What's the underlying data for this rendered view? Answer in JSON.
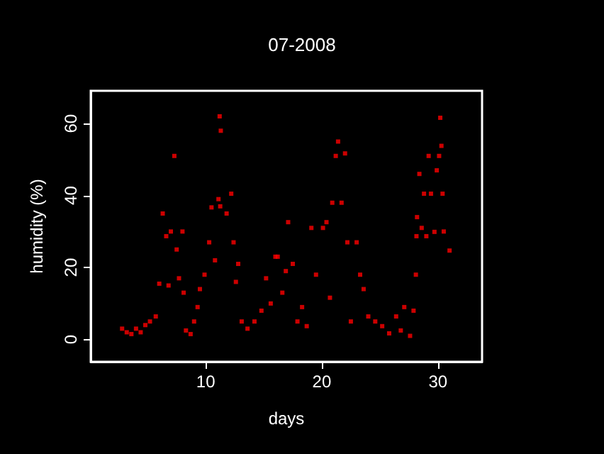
{
  "chart_data": {
    "type": "scatter",
    "title": "07-2008",
    "xlabel": "days",
    "ylabel": "humidity (%)",
    "marker": "square",
    "grid": false,
    "xlim": [
      0.1,
      33.8
    ],
    "xticks": [
      10,
      20,
      30
    ],
    "ylim": [
      -6.2,
      69.1
    ],
    "yticks": [
      0,
      20,
      40,
      60
    ],
    "series": [
      {
        "color": "#ff0000",
        "x": [
          2.8,
          3.2,
          3.6,
          4.0,
          4.4,
          4.8,
          5.2,
          5.7,
          6.0,
          6.3,
          6.6,
          6.8,
          7.0,
          7.3,
          7.5,
          7.7,
          8.0,
          8.1,
          8.3,
          8.7,
          9.0,
          9.3,
          9.5,
          9.9,
          10.3,
          10.5,
          10.8,
          11.1,
          11.2,
          11.3,
          11.25,
          11.8,
          12.2,
          12.4,
          12.6,
          12.8,
          13.1,
          13.6,
          14.2,
          14.8,
          15.2,
          15.6,
          16.0,
          16.2,
          16.6,
          16.9,
          17.1,
          17.5,
          17.9,
          18.3,
          18.7,
          19.1,
          19.5,
          20.1,
          20.4,
          20.7,
          20.9,
          21.2,
          21.4,
          21.7,
          22.0,
          22.2,
          22.5,
          23.0,
          23.3,
          23.6,
          24.0,
          24.6,
          25.2,
          25.8,
          26.4,
          26.8,
          27.1,
          27.6,
          27.9,
          28.1,
          28.15,
          28.2,
          28.4,
          28.6,
          28.8,
          29.0,
          29.2,
          29.4,
          29.7,
          29.9,
          30.1,
          30.2,
          30.3,
          30.4,
          30.5,
          31.0
        ],
        "values": [
          3,
          2,
          1.5,
          3,
          2,
          4,
          5,
          6.4,
          15.5,
          35,
          28.7,
          15,
          30,
          51,
          25,
          17,
          30,
          13,
          2.5,
          1.5,
          5,
          9,
          14,
          18,
          27,
          36.7,
          22,
          39,
          62,
          58,
          37,
          35,
          40.5,
          27,
          16,
          21,
          5,
          3,
          5,
          8,
          17,
          10,
          23,
          23,
          13,
          19,
          32.6,
          21,
          5,
          9,
          3.7,
          31,
          18,
          31,
          32.6,
          11.6,
          38,
          51,
          55,
          38,
          51.7,
          27,
          5,
          27,
          18,
          14,
          6.4,
          5,
          3.7,
          1.7,
          6.4,
          2.5,
          9,
          1,
          8,
          18,
          28.7,
          34,
          46,
          31,
          40.5,
          28.7,
          51,
          40.5,
          29.9,
          47,
          51,
          61.6,
          53.8,
          40.5,
          30,
          24.7
        ]
      }
    ]
  }
}
